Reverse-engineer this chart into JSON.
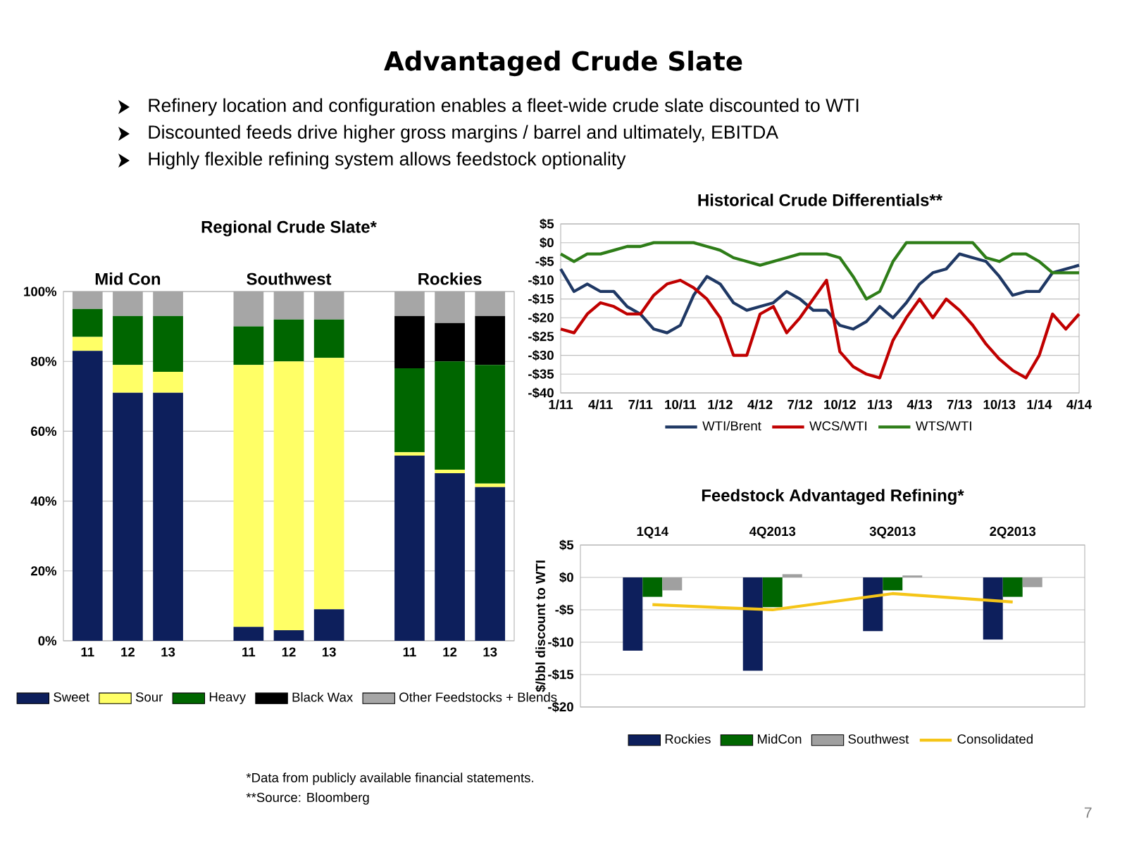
{
  "chart_data": [
    {
      "type": "other",
      "title": "Advantaged Crude Slate",
      "annotations": [
        "Refinery location and configuration enables a fleet-wide crude slate discounted to WTI",
        "Discounted feeds drive higher gross margins / barrel and ultimately, EBITDA",
        "Highly flexible refining system allows feedstock optionality",
        "*Data from publicly available financial statements.",
        "**Source: Bloomberg",
        "7"
      ]
    },
    {
      "type": "bar",
      "stacked": true,
      "title": "Regional Crude Slate*",
      "annotations": [
        "Mid Con",
        "Southwest",
        "Rockies"
      ],
      "categories": [
        "11",
        "12",
        "13",
        null,
        "11",
        "12",
        "13",
        null,
        "11",
        "12",
        "13"
      ],
      "series": [
        {
          "name": "Sweet",
          "color": "#0d1f5c",
          "values": [
            83,
            71,
            71,
            null,
            4,
            3,
            9,
            null,
            53,
            48,
            44
          ]
        },
        {
          "name": "Sour",
          "color": "#ffff66",
          "values": [
            4,
            8,
            6,
            null,
            75,
            77,
            72,
            null,
            1,
            1,
            1
          ]
        },
        {
          "name": "Heavy",
          "color": "#006600",
          "values": [
            8,
            14,
            16,
            null,
            11,
            12,
            11,
            null,
            24,
            31,
            34
          ]
        },
        {
          "name": "Black Wax",
          "color": "#000000",
          "values": [
            0,
            0,
            0,
            null,
            0,
            0,
            0,
            null,
            15,
            11,
            14
          ]
        },
        {
          "name": "Other Feedstocks + Blends",
          "color": "#a6a6a6",
          "values": [
            5,
            7,
            7,
            null,
            10,
            8,
            8,
            null,
            7,
            9,
            7
          ]
        }
      ],
      "ylim": [
        0,
        100
      ],
      "yticks": [
        {
          "value": 0,
          "label": "0%"
        },
        {
          "value": 20,
          "label": "20%"
        },
        {
          "value": 40,
          "label": "40%"
        },
        {
          "value": 60,
          "label": "60%"
        },
        {
          "value": 80,
          "label": "80%"
        },
        {
          "value": 100,
          "label": "100%"
        }
      ],
      "grid": "y",
      "legend": "bottom"
    },
    {
      "type": "line",
      "title": "Historical Crude Differentials**",
      "x": [
        "2011-01",
        "2011-02",
        "2011-03",
        "2011-04",
        "2011-05",
        "2011-06",
        "2011-07",
        "2011-08",
        "2011-09",
        "2011-10",
        "2011-11",
        "2011-12",
        "2012-01",
        "2012-02",
        "2012-03",
        "2012-04",
        "2012-05",
        "2012-06",
        "2012-07",
        "2012-08",
        "2012-09",
        "2012-10",
        "2012-11",
        "2012-12",
        "2013-01",
        "2013-02",
        "2013-03",
        "2013-04",
        "2013-05",
        "2013-06",
        "2013-07",
        "2013-08",
        "2013-09",
        "2013-10",
        "2013-11",
        "2013-12",
        "2014-01",
        "2014-02",
        "2014-03",
        "2014-04"
      ],
      "series": [
        {
          "name": "WTI/Brent",
          "color": "#1f3864",
          "values": [
            -7,
            -13,
            -11,
            -13,
            -13,
            -17,
            -19,
            -23,
            -24,
            -22,
            -14,
            -9,
            -11,
            -16,
            -18,
            -17,
            -16,
            -13,
            -15,
            -18,
            -18,
            -22,
            -23,
            -21,
            -17,
            -20,
            -16,
            -11,
            -8,
            -7,
            -3,
            -4,
            -5,
            -9,
            -14,
            -13,
            -13,
            -8,
            -7,
            -6
          ]
        },
        {
          "name": "WCS/WTI",
          "color": "#c00000",
          "values": [
            -23,
            -24,
            -19,
            -16,
            -17,
            -19,
            -19,
            -14,
            -11,
            -10,
            -12,
            -15,
            -20,
            -30,
            -30,
            -19,
            -17,
            -24,
            -20,
            -15,
            -10,
            -29,
            -33,
            -35,
            -36,
            -26,
            -20,
            -15,
            -20,
            -15,
            -18,
            -22,
            -27,
            -31,
            -34,
            -36,
            -30,
            -19,
            -23,
            -19
          ]
        },
        {
          "name": "WTS/WTI",
          "color": "#2e7d18",
          "values": [
            -3,
            -5,
            -3,
            -3,
            -2,
            -1,
            -1,
            0,
            0,
            0,
            0,
            -1,
            -2,
            -4,
            -5,
            -6,
            -5,
            -4,
            -3,
            -3,
            -3,
            -4,
            -9,
            -15,
            -13,
            -5,
            0,
            0,
            0,
            0,
            0,
            0,
            -4,
            -5,
            -3,
            -3,
            -5,
            -8,
            -8,
            -8
          ]
        }
      ],
      "xlim": [
        "2011-01",
        "2014-04"
      ],
      "xticks": [
        {
          "value": "2011-01",
          "label": "1/11"
        },
        {
          "value": "2011-04",
          "label": "4/11"
        },
        {
          "value": "2011-07",
          "label": "7/11"
        },
        {
          "value": "2011-10",
          "label": "10/11"
        },
        {
          "value": "2012-01",
          "label": "1/12"
        },
        {
          "value": "2012-04",
          "label": "4/12"
        },
        {
          "value": "2012-07",
          "label": "7/12"
        },
        {
          "value": "2012-10",
          "label": "10/12"
        },
        {
          "value": "2013-01",
          "label": "1/13"
        },
        {
          "value": "2013-04",
          "label": "4/13"
        },
        {
          "value": "2013-07",
          "label": "7/13"
        },
        {
          "value": "2013-10",
          "label": "10/13"
        },
        {
          "value": "2014-01",
          "label": "1/14"
        },
        {
          "value": "2014-04",
          "label": "4/14"
        }
      ],
      "ylim": [
        -40,
        5
      ],
      "yticks": [
        {
          "value": 5,
          "label": "$5"
        },
        {
          "value": 0,
          "label": "$0"
        },
        {
          "value": -5,
          "label": "-$5"
        },
        {
          "value": -10,
          "label": "-$10"
        },
        {
          "value": -15,
          "label": "-$15"
        },
        {
          "value": -20,
          "label": "-$20"
        },
        {
          "value": -25,
          "label": "-$25"
        },
        {
          "value": -30,
          "label": "-$30"
        },
        {
          "value": -35,
          "label": "-$35"
        },
        {
          "value": -40,
          "label": "-$40"
        }
      ],
      "grid": "y",
      "legend": "bottom"
    },
    {
      "type": "bar",
      "title": "Feedstock Advantaged Refining*",
      "ylabel": "$/bbl discount to WTI",
      "categories": [
        "1Q14",
        "4Q2013",
        "3Q2013",
        "2Q2013"
      ],
      "series": [
        {
          "name": "Rockies",
          "color": "#0d1f5c",
          "values": [
            -11.3,
            -14.4,
            -8.3,
            -9.6
          ]
        },
        {
          "name": "MidCon",
          "color": "#006600",
          "values": [
            -3,
            -4.6,
            -2,
            -3
          ]
        },
        {
          "name": "Southwest",
          "color": "#a0a0a0",
          "values": [
            -2,
            0.5,
            0.3,
            -1.5
          ]
        },
        {
          "name": "Consolidated",
          "type": "line",
          "color": "#f5c518",
          "values": [
            -4.2,
            -5,
            -2.5,
            -3.8
          ]
        }
      ],
      "ylim": [
        -20,
        5
      ],
      "yticks": [
        {
          "value": 5,
          "label": "$5"
        },
        {
          "value": 0,
          "label": "$0"
        },
        {
          "value": -5,
          "label": "-$5"
        },
        {
          "value": -10,
          "label": "-$10"
        },
        {
          "value": -15,
          "label": "-$15"
        },
        {
          "value": -20,
          "label": "-$20"
        }
      ],
      "grid": "y",
      "legend": "bottom"
    }
  ]
}
